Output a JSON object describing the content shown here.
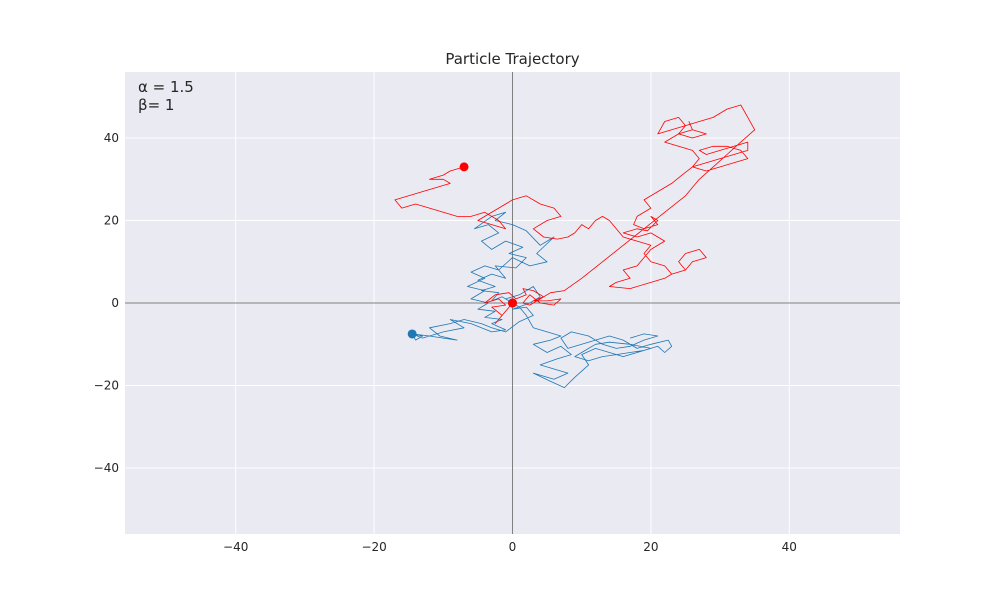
{
  "chart_data": {
    "type": "line",
    "title": "Particle Trajectory",
    "xlabel": "",
    "ylabel": "",
    "xlim": [
      -56,
      56
    ],
    "ylim": [
      -56,
      56
    ],
    "xticks": [
      -40,
      -20,
      0,
      20,
      40
    ],
    "yticks": [
      -40,
      -20,
      0,
      20,
      40
    ],
    "xtick_labels": [
      "−40",
      "−20",
      "0",
      "20",
      "40"
    ],
    "ytick_labels": [
      "−40",
      "−20",
      "0",
      "20",
      "40"
    ],
    "grid": true,
    "axis_lines_through_origin": true,
    "annotations": [
      "α = 1.5",
      "β= 1"
    ],
    "series": [
      {
        "color": "#1f77b4",
        "end_marker": [
          -14.5,
          -7.5
        ],
        "points": [
          [
            0,
            0
          ],
          [
            -1.5,
            1.5
          ],
          [
            -3,
            0.5
          ],
          [
            -2,
            2.5
          ],
          [
            -4.5,
            3
          ],
          [
            -2.5,
            4
          ],
          [
            -5,
            5.5
          ],
          [
            -3,
            7
          ],
          [
            -1,
            6
          ],
          [
            -2.5,
            9
          ],
          [
            0.5,
            8.5
          ],
          [
            2,
            11
          ],
          [
            -0.5,
            12
          ],
          [
            1.5,
            13.5
          ],
          [
            -1,
            15
          ],
          [
            -3,
            13
          ],
          [
            -4.5,
            15
          ],
          [
            -2,
            17
          ],
          [
            -3.5,
            19
          ],
          [
            -5.5,
            18
          ],
          [
            -3,
            21
          ],
          [
            -1,
            22
          ],
          [
            -2.5,
            20
          ],
          [
            0,
            19
          ],
          [
            2,
            17.5
          ],
          [
            4,
            14
          ],
          [
            6,
            16
          ],
          [
            3.5,
            12
          ],
          [
            5,
            10
          ],
          [
            2.5,
            9
          ],
          [
            0,
            11
          ],
          [
            -2,
            8
          ],
          [
            -4,
            9
          ],
          [
            -6,
            7.5
          ],
          [
            -4,
            6
          ],
          [
            -6.5,
            4
          ],
          [
            -4,
            3
          ],
          [
            -6,
            1
          ],
          [
            -3.5,
            0
          ],
          [
            -5,
            -1.5
          ],
          [
            -2.5,
            -2
          ],
          [
            -4,
            -3.5
          ],
          [
            -1.5,
            -4
          ],
          [
            -3,
            -5
          ],
          [
            -1,
            -6.5
          ],
          [
            -3,
            -7
          ],
          [
            -6,
            -5
          ],
          [
            -9,
            -4
          ],
          [
            -7,
            -6
          ],
          [
            -10,
            -7
          ],
          [
            -12,
            -8
          ],
          [
            -14.5,
            -7.5
          ],
          [
            -14,
            -9
          ],
          [
            -13,
            -8
          ],
          [
            -14.5,
            -7.5
          ],
          [
            -13,
            -8.5
          ],
          [
            -12,
            -8
          ],
          [
            -10,
            -8.5
          ],
          [
            -8,
            -9
          ],
          [
            -10.5,
            -8
          ],
          [
            -12,
            -6
          ],
          [
            -9,
            -5
          ],
          [
            -7,
            -4
          ],
          [
            -4.5,
            -5
          ],
          [
            -3,
            -6
          ],
          [
            -1,
            -7
          ],
          [
            1,
            -4.5
          ],
          [
            3,
            -3
          ],
          [
            2,
            -1
          ],
          [
            0,
            -1.5
          ],
          [
            2.5,
            0
          ],
          [
            4,
            1.5
          ],
          [
            3,
            4
          ],
          [
            1,
            2
          ],
          [
            -1,
            1
          ],
          [
            1,
            -1
          ],
          [
            2,
            -3
          ],
          [
            3,
            -6
          ],
          [
            5,
            -7
          ],
          [
            7,
            -8
          ],
          [
            5.5,
            -9
          ],
          [
            3,
            -10
          ],
          [
            5,
            -12
          ],
          [
            7,
            -10.5
          ],
          [
            8.5,
            -12.5
          ],
          [
            6.5,
            -13.5
          ],
          [
            4,
            -15
          ],
          [
            6,
            -16
          ],
          [
            8,
            -17
          ],
          [
            6,
            -18.5
          ],
          [
            3,
            -17
          ],
          [
            5.5,
            -19
          ],
          [
            7.5,
            -20.5
          ],
          [
            9,
            -18
          ],
          [
            11,
            -15
          ],
          [
            10,
            -12.5
          ],
          [
            12,
            -11
          ],
          [
            14,
            -12
          ],
          [
            16,
            -13
          ],
          [
            18,
            -12
          ],
          [
            20,
            -11
          ],
          [
            17,
            -10
          ],
          [
            14,
            -9.5
          ],
          [
            12,
            -10
          ],
          [
            10,
            -12
          ],
          [
            9,
            -13
          ],
          [
            11,
            -14
          ],
          [
            13,
            -13
          ],
          [
            15,
            -12.5
          ],
          [
            17,
            -12
          ],
          [
            19,
            -11.5
          ],
          [
            21,
            -10.5
          ],
          [
            22,
            -12
          ],
          [
            23,
            -10.5
          ],
          [
            22.5,
            -9
          ],
          [
            20,
            -10
          ],
          [
            18,
            -11
          ],
          [
            16,
            -9
          ],
          [
            14,
            -8
          ],
          [
            12,
            -9
          ],
          [
            10,
            -10
          ],
          [
            8,
            -11
          ],
          [
            7,
            -8.5
          ],
          [
            8.5,
            -7
          ],
          [
            11,
            -8
          ],
          [
            13,
            -10
          ],
          [
            15,
            -11
          ],
          [
            17,
            -10.5
          ],
          [
            19,
            -9
          ],
          [
            21,
            -8
          ],
          [
            19,
            -7.5
          ],
          [
            17,
            -8.5
          ]
        ]
      },
      {
        "color": "#ff0000",
        "end_marker": [
          -7,
          33
        ],
        "points": [
          [
            0,
            0
          ],
          [
            -1,
            -2
          ],
          [
            -2.5,
            -5
          ],
          [
            -1.5,
            -3
          ],
          [
            -3,
            -1
          ],
          [
            -1,
            -0.5
          ],
          [
            -2,
            1
          ],
          [
            -4,
            0
          ],
          [
            -2.5,
            2
          ],
          [
            -0.5,
            2.5
          ],
          [
            0.5,
            1
          ],
          [
            2,
            2
          ],
          [
            1.5,
            3.5
          ],
          [
            3,
            3
          ],
          [
            4.5,
            1.5
          ],
          [
            3,
            0.5
          ],
          [
            5,
            0.5
          ],
          [
            7,
            1
          ],
          [
            6,
            -0.5
          ],
          [
            4,
            0
          ],
          [
            2.5,
            2
          ],
          [
            1.5,
            0
          ],
          [
            2.5,
            -0.5
          ],
          [
            4,
            1
          ],
          [
            5.5,
            2.5
          ],
          [
            7.5,
            3
          ],
          [
            10,
            6
          ],
          [
            13,
            10
          ],
          [
            16,
            14
          ],
          [
            19,
            18
          ],
          [
            22,
            22
          ],
          [
            25,
            26
          ],
          [
            27,
            30
          ],
          [
            29,
            33
          ],
          [
            31,
            36
          ],
          [
            33,
            39
          ],
          [
            35,
            42
          ],
          [
            34,
            45
          ],
          [
            33,
            48
          ],
          [
            31,
            47
          ],
          [
            29,
            45
          ],
          [
            27,
            44
          ],
          [
            25,
            43
          ],
          [
            23,
            42
          ],
          [
            21,
            41
          ],
          [
            22,
            44
          ],
          [
            24,
            45
          ],
          [
            25,
            43
          ],
          [
            24,
            41
          ],
          [
            26,
            40
          ],
          [
            28,
            41
          ],
          [
            26,
            42
          ],
          [
            25.5,
            44
          ],
          [
            26,
            42
          ],
          [
            24,
            41
          ],
          [
            22,
            39
          ],
          [
            24,
            38
          ],
          [
            26,
            37
          ],
          [
            27,
            35
          ],
          [
            26,
            33
          ],
          [
            28,
            32
          ],
          [
            30,
            33
          ],
          [
            32,
            34
          ],
          [
            34,
            35
          ],
          [
            33,
            37
          ],
          [
            31,
            38
          ],
          [
            29,
            38
          ],
          [
            27,
            37
          ],
          [
            28,
            36
          ],
          [
            30,
            37
          ],
          [
            32,
            38
          ],
          [
            34,
            39
          ],
          [
            34,
            37
          ],
          [
            32,
            36
          ],
          [
            30,
            35
          ],
          [
            28,
            34
          ],
          [
            26,
            33
          ],
          [
            24.5,
            31
          ],
          [
            23,
            29
          ],
          [
            21,
            27
          ],
          [
            19,
            25
          ],
          [
            20,
            23
          ],
          [
            18,
            21
          ],
          [
            17.5,
            19
          ],
          [
            19,
            18
          ],
          [
            21,
            19
          ],
          [
            20,
            21
          ],
          [
            21,
            20
          ],
          [
            19.5,
            17.5
          ],
          [
            18,
            18
          ],
          [
            16,
            17
          ],
          [
            18,
            16
          ],
          [
            20,
            17
          ],
          [
            22,
            15
          ],
          [
            20,
            13
          ],
          [
            19,
            11
          ],
          [
            18,
            9
          ],
          [
            16,
            8
          ],
          [
            17,
            6
          ],
          [
            15,
            5
          ],
          [
            14,
            4
          ],
          [
            17,
            3.5
          ],
          [
            20,
            5
          ],
          [
            22,
            6
          ],
          [
            23,
            7
          ],
          [
            25,
            8
          ],
          [
            26,
            10
          ],
          [
            28,
            11
          ],
          [
            27,
            13
          ],
          [
            25,
            12
          ],
          [
            24,
            10
          ],
          [
            25,
            8
          ],
          [
            23,
            7
          ],
          [
            22,
            9
          ],
          [
            20,
            10
          ],
          [
            19,
            12
          ],
          [
            20,
            14
          ],
          [
            18,
            15
          ],
          [
            16,
            16
          ],
          [
            15,
            18
          ],
          [
            14,
            20
          ],
          [
            13,
            21
          ],
          [
            12,
            20
          ],
          [
            11,
            18
          ],
          [
            10,
            19
          ],
          [
            9,
            17
          ],
          [
            8,
            16
          ],
          [
            6.5,
            15.5
          ],
          [
            4.5,
            16
          ],
          [
            3,
            18
          ],
          [
            5,
            20
          ],
          [
            7,
            21
          ],
          [
            6,
            23
          ],
          [
            4,
            24
          ],
          [
            2,
            26
          ],
          [
            0,
            25
          ],
          [
            -2,
            23
          ],
          [
            -4,
            21
          ],
          [
            -5,
            20
          ],
          [
            -3,
            19
          ],
          [
            -1,
            18
          ],
          [
            -2,
            20
          ],
          [
            -4,
            22
          ],
          [
            -6,
            21
          ],
          [
            -8,
            21
          ],
          [
            -10,
            22
          ],
          [
            -12,
            23
          ],
          [
            -14,
            24
          ],
          [
            -16,
            23
          ],
          [
            -17,
            25
          ],
          [
            -15,
            26
          ],
          [
            -13,
            27
          ],
          [
            -11,
            28
          ],
          [
            -9,
            29
          ],
          [
            -10,
            30
          ],
          [
            -12,
            30
          ],
          [
            -10,
            31
          ],
          [
            -9,
            32
          ],
          [
            -7,
            33
          ]
        ]
      }
    ]
  }
}
